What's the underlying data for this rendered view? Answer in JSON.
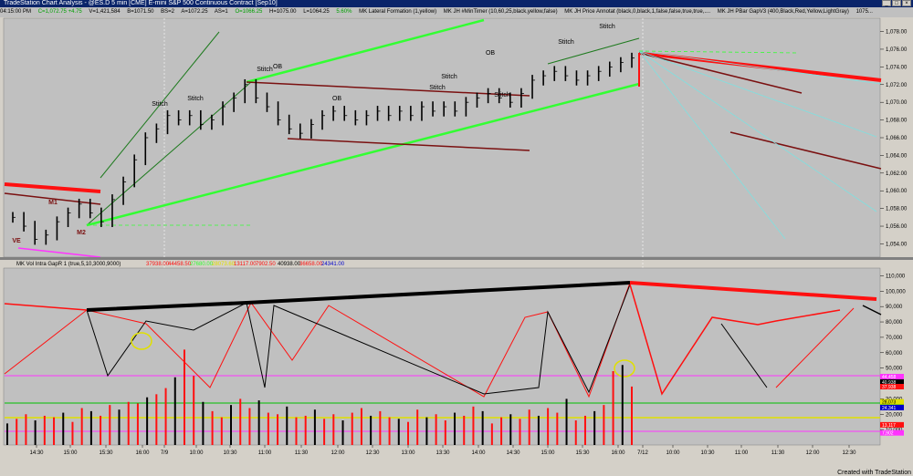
{
  "window": {
    "title": "TradeStation Chart Analysis - @ES.D 5 min [CME] E-mini S&P 500 Continuous Contract [Sep10]",
    "buttons": [
      "_",
      "□",
      "×"
    ]
  },
  "statusbar": {
    "time": "04:15:00 PM",
    "fields": [
      "V=1,421,584",
      "B=1071.50",
      "BS=2",
      "A=1072.25",
      "AS=1",
      "H=1075.00",
      "L=1064.25",
      "5.60%"
    ],
    "green_fields": [
      "C=1,072.75 +4.75",
      "O=1066.25"
    ],
    "studies": [
      "MK Lateral Formation (1,yellow)",
      "MK JH #MinTimer (10,60,25,black,yellow,false)",
      "MK JH Price Annotat (black,0,black,1,false,false,true,true,....",
      "MK JH PBar GapV3 (400,Black,Red,Yellow,LightGray)",
      "1075..."
    ]
  },
  "footer": "Created with TradeStation",
  "chart_data": [
    {
      "type": "line",
      "title": "",
      "x_ticks": [
        "14:30",
        "15:00",
        "15:30",
        "16:00",
        "7/9",
        "10:00",
        "10:30",
        "11:00",
        "11:30",
        "12:00",
        "12:30",
        "13:00",
        "13:30",
        "14:00",
        "14:30",
        "15:00",
        "15:30",
        "16:00",
        "7/12",
        "10:00",
        "10:30",
        "11:00",
        "11:30",
        "12:00",
        "12:30"
      ],
      "y_ticks": [
        "1,078.00",
        "1,076.00",
        "1,074.00",
        "1,072.00",
        "1,070.00",
        "1,068.00",
        "1,066.00",
        "1,064.00",
        "1,062.00",
        "1,060.00",
        "1,058.00",
        "1,056.00",
        "1,054.00"
      ],
      "ylim": [
        1052.5,
        1079.5
      ],
      "annotations": [
        "VE",
        "M1",
        "M2",
        "Stitch",
        "Stitch",
        "Stitch",
        "OB",
        "OB",
        "Stitch",
        "Stitch",
        "Stitch",
        "OB",
        "Stitch",
        "Stitch"
      ],
      "series": [
        {
          "values": [
            1057,
            1056,
            1054.5,
            1055,
            1056.5,
            1057.5,
            1058.5,
            1057.5,
            1056.5,
            1059,
            1061,
            1063.5,
            1066,
            1067,
            1068.5,
            1068,
            1068.5,
            1067.5,
            1068,
            1069.5,
            1070.5,
            1072,
            1070.5,
            1069.5,
            1068,
            1067,
            1066.5,
            1067.5,
            1068.5,
            1069,
            1068.5,
            1068,
            1068.5,
            1069,
            1068.5,
            1069,
            1068.5,
            1069.5,
            1069,
            1069.5,
            1069,
            1070,
            1070.5,
            1071,
            1070.5,
            1070,
            1071,
            1072.5,
            1073,
            1073.5,
            1073,
            1072.5,
            1073,
            1073.5,
            1074,
            1074.5,
            1075
          ]
        }
      ]
    },
    {
      "type": "bar",
      "title": "MK Vol Intra GapR 1 (true,5,10,3000,9000)",
      "legend_values": [
        "37938.00",
        "44458.50",
        "27680.00",
        "28073.60",
        "13117.00",
        "7902.50",
        "40938.00",
        "36658.00",
        "24341.00"
      ],
      "y_ticks": [
        "110,000",
        "100,000",
        "90,000",
        "80,000",
        "70,000",
        "60,000",
        "50,000",
        "40,000",
        "30,000",
        "20,000",
        "10,000"
      ],
      "ylim": [
        0,
        115000
      ],
      "right_labels": [
        "44,458",
        "40,938",
        "37,938",
        "27,680",
        "28,073",
        "24,341",
        "13,117",
        "7,902"
      ],
      "values": [
        14000,
        17000,
        20000,
        16000,
        19000,
        18000,
        21000,
        15000,
        24000,
        22000,
        19000,
        26000,
        23000,
        28000,
        27000,
        31000,
        33000,
        37000,
        44000,
        62000,
        45000,
        28000,
        22000,
        18000,
        26000,
        30000,
        24000,
        29000,
        21000,
        20000,
        25000,
        18000,
        19000,
        23000,
        17000,
        20000,
        16000,
        21000,
        24000,
        19000,
        22000,
        18000,
        17000,
        15000,
        23000,
        18000,
        20000,
        16000,
        21000,
        19000,
        25000,
        22000,
        14000,
        18000,
        20000,
        17000,
        23000,
        19000,
        24000,
        21000,
        30000,
        16000,
        19000,
        22000,
        26000,
        48000,
        52000,
        38000
      ]
    }
  ]
}
